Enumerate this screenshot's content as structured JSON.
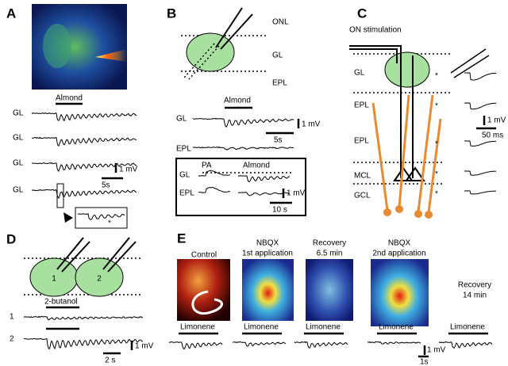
{
  "A": {
    "label": "A",
    "stimulus": "Almond",
    "traces": [
      "GL",
      "GL",
      "GL",
      "GL"
    ],
    "scale_v": "1 mV",
    "scale_t": "5s",
    "inset_marker": "*"
  },
  "B": {
    "label": "B",
    "layers": [
      "ONL",
      "GL",
      "EPL"
    ],
    "stimulus": "Almond",
    "traces": [
      "GL",
      "EPL"
    ],
    "scale_v": "1 mV",
    "scale_t": "5s",
    "inset": {
      "traces": [
        "GL",
        "EPL"
      ],
      "stimuli": [
        "PA",
        "Almond"
      ],
      "scale_v": "1 mV",
      "scale_t": "10 s"
    }
  },
  "C": {
    "label": "C",
    "stimulation": "ON stimulation",
    "layers": [
      "GL",
      "EPL",
      "EPL",
      "MCL",
      "GCL"
    ],
    "markers": [
      "*",
      "*",
      "*",
      "*",
      "*"
    ],
    "scale_v": "1 mV",
    "scale_t": "50 ms"
  },
  "D": {
    "label": "D",
    "cells": [
      "1",
      "2"
    ],
    "stimulus": "2-butanol",
    "traces": [
      "1",
      "2"
    ],
    "scale_v": "1 mV",
    "scale_t": "2 s"
  },
  "E": {
    "label": "E",
    "conditions": [
      {
        "title": "Control",
        "stimulus": "Limonene"
      },
      {
        "title": "NBQX",
        "subtitle": "1st application",
        "stimulus": "Limonene"
      },
      {
        "title": "Recovery",
        "subtitle": "6.5 min",
        "stimulus": "Limonene"
      },
      {
        "title": "NBQX",
        "subtitle": "2nd application",
        "stimulus": "Limonene"
      },
      {
        "title": "Recovery",
        "subtitle": "14 min",
        "stimulus": "Limonene"
      }
    ],
    "scale_v": "1 mV",
    "scale_t": "1s"
  }
}
